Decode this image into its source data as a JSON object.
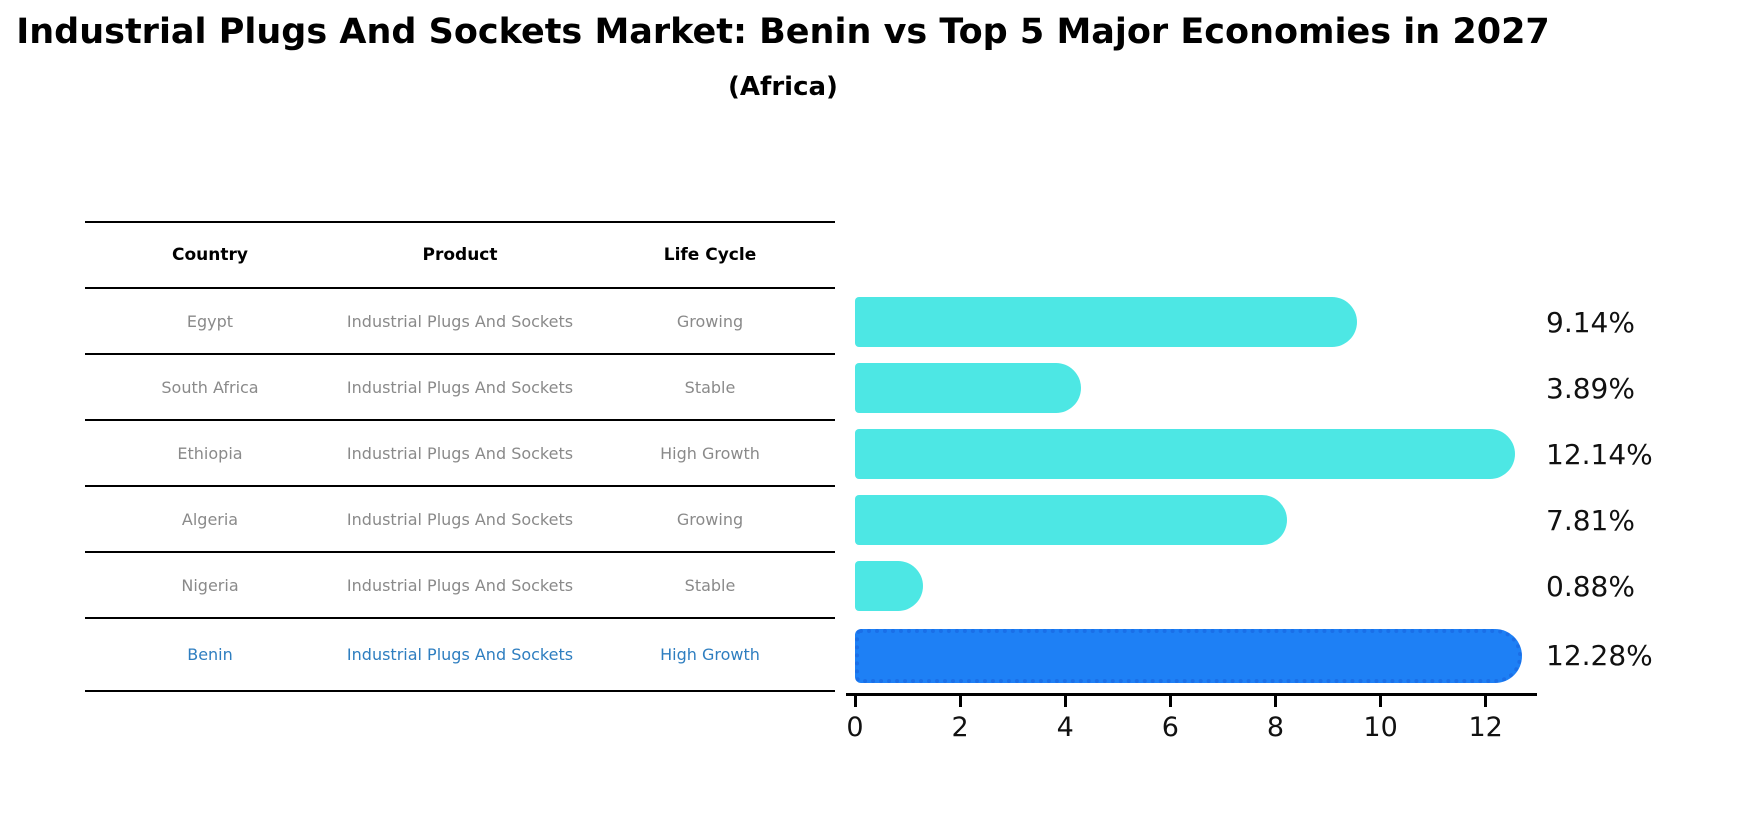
{
  "header": {
    "title": "Industrial Plugs And Sockets Market: Benin vs Top 5 Major Economies in 2027",
    "subtitle": "(Africa)"
  },
  "table": {
    "headers": [
      "Country",
      "Product",
      "Life Cycle"
    ],
    "rows": [
      {
        "country": "Egypt",
        "product": "Industrial Plugs And Sockets",
        "life_cycle": "Growing",
        "highlight": false
      },
      {
        "country": "South Africa",
        "product": "Industrial Plugs And Sockets",
        "life_cycle": "Stable",
        "highlight": false
      },
      {
        "country": "Ethiopia",
        "product": "Industrial Plugs And Sockets",
        "life_cycle": "High Growth",
        "highlight": false
      },
      {
        "country": "Algeria",
        "product": "Industrial Plugs And Sockets",
        "life_cycle": "Growing",
        "highlight": false
      },
      {
        "country": "Nigeria",
        "product": "Industrial Plugs And Sockets",
        "life_cycle": "Stable",
        "highlight": false
      },
      {
        "country": "Benin",
        "product": "Industrial Plugs And Sockets",
        "life_cycle": "High Growth",
        "highlight": true
      }
    ],
    "body_text_color": "#8a8a8a",
    "header_text_color": "#000000",
    "highlight_text_color": "#2e7ec0"
  },
  "chart_data": {
    "type": "bar",
    "orientation": "horizontal",
    "title": "Industrial Plugs And Sockets Market: Benin vs Top 5 Major Economies in 2027",
    "subtitle": "(Africa)",
    "categories": [
      "Egypt",
      "South Africa",
      "Ethiopia",
      "Algeria",
      "Nigeria",
      "Benin"
    ],
    "values": [
      9.14,
      3.89,
      12.14,
      7.81,
      0.88,
      12.28
    ],
    "value_labels": [
      "9.14%",
      "3.89%",
      "12.14%",
      "7.81%",
      "0.88%",
      "12.28%"
    ],
    "xlim": [
      0,
      12.9
    ],
    "x_ticks": [
      0,
      2,
      4,
      6,
      8,
      10,
      12
    ],
    "bar_color": "#4de7e4",
    "highlight_bar_color": "#1e80f5",
    "highlight_border_color": "#1a6fe8",
    "highlight_index": 5,
    "grid": false,
    "legend": false
  }
}
